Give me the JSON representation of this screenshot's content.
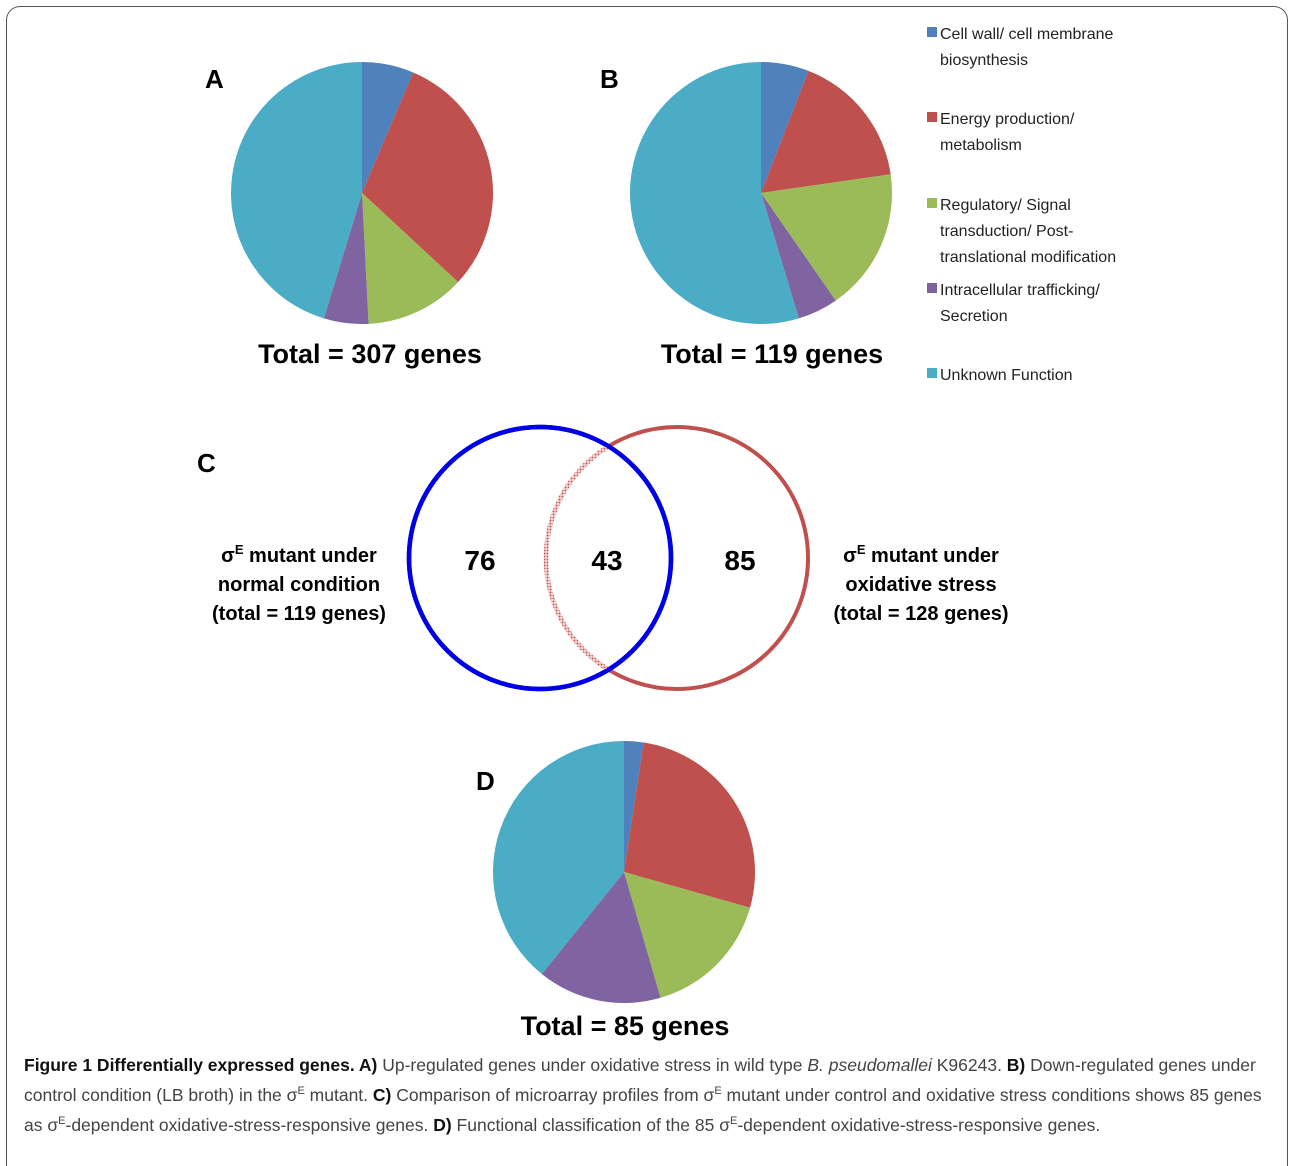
{
  "legend": [
    {
      "lines": [
        "Cell wall/ cell membrane",
        "biosynthesis"
      ],
      "color": "#4F81BD"
    },
    {
      "lines": [
        "Energy production/",
        "metabolism"
      ],
      "color": "#C0504D"
    },
    {
      "lines": [
        "Regulatory/ Signal",
        "transduction/ Post-",
        "translational modification"
      ],
      "color": "#9BBB59"
    },
    {
      "lines": [
        "Intracellular trafficking/",
        "Secretion"
      ],
      "color": "#8064A2"
    },
    {
      "lines": [
        "Unknown Function"
      ],
      "color": "#4BACC6"
    }
  ],
  "chart_data": [
    {
      "type": "pie",
      "panel": "A",
      "title": "Total = 307 genes",
      "categories": [
        "Cell wall/ cell membrane biosynthesis",
        "Energy production/ metabolism",
        "Regulatory/ Signal transduction/ Post-translational modification",
        "Intracellular trafficking/ Secretion",
        "Unknown Function"
      ],
      "values": [
        6.4,
        30.5,
        12.3,
        5.5,
        45.3
      ]
    },
    {
      "type": "pie",
      "panel": "B",
      "title": "Total = 119 genes",
      "categories": [
        "Cell wall/ cell membrane biosynthesis",
        "Energy production/ metabolism",
        "Regulatory/ Signal transduction/ Post-translational modification",
        "Intracellular trafficking/ Secretion",
        "Unknown Function"
      ],
      "values": [
        5.9,
        16.8,
        17.6,
        5.0,
        54.6
      ]
    },
    {
      "type": "venn",
      "panel": "C",
      "sets": [
        {
          "label_lines": [
            "σE mutant  under",
            "normal condition",
            "(total = 119 genes)"
          ],
          "only": "76",
          "color": "#0000E6"
        },
        {
          "label_lines": [
            "σE mutant under",
            "oxidative stress",
            "(total = 128 genes)"
          ],
          "only": "85",
          "color": "#C0504D"
        }
      ],
      "intersection": "43"
    },
    {
      "type": "pie",
      "panel": "D",
      "title": "Total = 85 genes",
      "categories": [
        "Cell wall/ cell membrane biosynthesis",
        "Energy production/ metabolism",
        "Regulatory/ Signal transduction/ Post-translational modification",
        "Intracellular trafficking/ Secretion",
        "Unknown Function"
      ],
      "values": [
        2.4,
        27.0,
        16.1,
        15.3,
        39.2
      ]
    }
  ],
  "caption": {
    "title": "Figure 1 Differentially expressed genes.",
    "parts": [
      {
        "b": "A)",
        "t": " Up-regulated genes under oxidative stress in wild type "
      },
      {
        "i": "B. pseudomallei"
      },
      {
        "t": " K96243. "
      },
      {
        "b": "B)",
        "t": " Down-regulated genes under control condition (LB broth) in the σ"
      },
      {
        "sup": "E"
      },
      {
        "t": " mutant. "
      },
      {
        "b": "C)",
        "t": " Comparison of microarray profiles from σ"
      },
      {
        "sup": "E"
      },
      {
        "t": " mutant under control and oxidative stress conditions shows 85 genes as σ"
      },
      {
        "sup": "E"
      },
      {
        "t": "-dependent oxidative-stress-responsive genes. "
      },
      {
        "b": "D)",
        "t": " Functional classification of the 85 σ"
      },
      {
        "sup": "E"
      },
      {
        "t": "-dependent oxidative-stress-responsive genes."
      }
    ]
  }
}
